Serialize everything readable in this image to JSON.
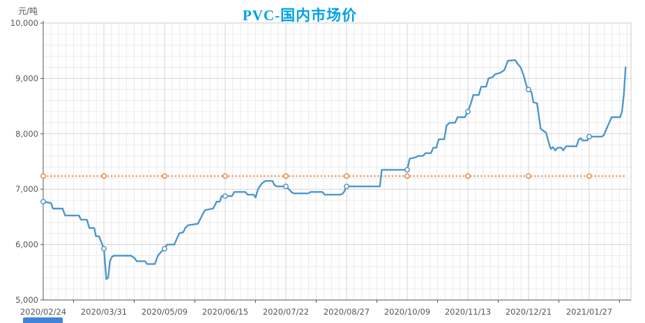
{
  "page": {
    "unit_label": "元/吨",
    "title": "PVC-国内市场价"
  },
  "chart_data": {
    "type": "line",
    "title": "PVC-国内市场价",
    "ylabel": "元/吨",
    "ylim": [
      5000,
      10000
    ],
    "y_tick_step": 1000,
    "y_minor_step": 200,
    "y_tick_labels": [
      "5,000",
      "6,000",
      "7,000",
      "8,000",
      "9,000",
      "10,000"
    ],
    "x_tick_labels": [
      "2020/02/24",
      "2020/03/31",
      "2020/05/09",
      "2020/06/15",
      "2020/07/22",
      "2020/08/27",
      "2020/10/09",
      "2020/11/13",
      "2020/12/21",
      "2021/01/27"
    ],
    "x_minor_per_interval": 8,
    "x_range_units": [
      0,
      9.69
    ],
    "grid": true,
    "legend": "none",
    "series": [
      {
        "id": "market-price",
        "color": "#4e97cb",
        "line_style": "solid",
        "marker": "hollow-circle-at-label-positions",
        "points": [
          [
            0.0,
            6775
          ],
          [
            0.13,
            6750
          ],
          [
            0.16,
            6650
          ],
          [
            0.32,
            6650
          ],
          [
            0.36,
            6525
          ],
          [
            0.59,
            6525
          ],
          [
            0.62,
            6450
          ],
          [
            0.72,
            6450
          ],
          [
            0.76,
            6300
          ],
          [
            0.84,
            6300
          ],
          [
            0.87,
            6150
          ],
          [
            0.92,
            6150
          ],
          [
            1.0,
            5925
          ],
          [
            1.04,
            5375
          ],
          [
            1.07,
            5400
          ],
          [
            1.1,
            5700
          ],
          [
            1.13,
            5775
          ],
          [
            1.16,
            5800
          ],
          [
            1.45,
            5800
          ],
          [
            1.51,
            5750
          ],
          [
            1.54,
            5700
          ],
          [
            1.68,
            5700
          ],
          [
            1.71,
            5650
          ],
          [
            1.84,
            5650
          ],
          [
            1.89,
            5800
          ],
          [
            1.95,
            5875
          ],
          [
            2.0,
            5925
          ],
          [
            2.04,
            6000
          ],
          [
            2.16,
            6000
          ],
          [
            2.2,
            6100
          ],
          [
            2.24,
            6200
          ],
          [
            2.31,
            6225
          ],
          [
            2.34,
            6300
          ],
          [
            2.39,
            6350
          ],
          [
            2.55,
            6375
          ],
          [
            2.63,
            6550
          ],
          [
            2.67,
            6625
          ],
          [
            2.8,
            6650
          ],
          [
            2.86,
            6775
          ],
          [
            2.91,
            6775
          ],
          [
            2.94,
            6875
          ],
          [
            3.11,
            6875
          ],
          [
            3.15,
            6950
          ],
          [
            3.33,
            6950
          ],
          [
            3.37,
            6900
          ],
          [
            3.47,
            6900
          ],
          [
            3.5,
            6850
          ],
          [
            3.54,
            7000
          ],
          [
            3.6,
            7100
          ],
          [
            3.66,
            7150
          ],
          [
            3.78,
            7150
          ],
          [
            3.81,
            7075
          ],
          [
            3.85,
            7050
          ],
          [
            4.0,
            7050
          ],
          [
            4.05,
            7000
          ],
          [
            4.09,
            6950
          ],
          [
            4.13,
            6925
          ],
          [
            4.37,
            6925
          ],
          [
            4.41,
            6950
          ],
          [
            4.6,
            6950
          ],
          [
            4.64,
            6900
          ],
          [
            4.9,
            6900
          ],
          [
            4.94,
            6925
          ],
          [
            4.97,
            6975
          ],
          [
            5.0,
            7050
          ],
          [
            5.55,
            7050
          ],
          [
            5.58,
            7350
          ],
          [
            6.0,
            7350
          ],
          [
            6.04,
            7550
          ],
          [
            6.14,
            7575
          ],
          [
            6.18,
            7600
          ],
          [
            6.26,
            7600
          ],
          [
            6.3,
            7650
          ],
          [
            6.39,
            7650
          ],
          [
            6.43,
            7750
          ],
          [
            6.48,
            7750
          ],
          [
            6.52,
            7900
          ],
          [
            6.61,
            7900
          ],
          [
            6.65,
            8150
          ],
          [
            6.7,
            8200
          ],
          [
            6.79,
            8200
          ],
          [
            6.83,
            8300
          ],
          [
            6.95,
            8300
          ],
          [
            7.0,
            8400
          ],
          [
            7.05,
            8550
          ],
          [
            7.09,
            8700
          ],
          [
            7.18,
            8700
          ],
          [
            7.22,
            8850
          ],
          [
            7.3,
            8850
          ],
          [
            7.34,
            9000
          ],
          [
            7.41,
            9025
          ],
          [
            7.45,
            9075
          ],
          [
            7.53,
            9100
          ],
          [
            7.6,
            9150
          ],
          [
            7.66,
            9320
          ],
          [
            7.78,
            9330
          ],
          [
            7.83,
            9250
          ],
          [
            7.87,
            9200
          ],
          [
            7.92,
            9050
          ],
          [
            7.97,
            8850
          ],
          [
            8.0,
            8800
          ],
          [
            8.05,
            8750
          ],
          [
            8.08,
            8570
          ],
          [
            8.14,
            8550
          ],
          [
            8.2,
            8090
          ],
          [
            8.25,
            8050
          ],
          [
            8.29,
            8020
          ],
          [
            8.35,
            7775
          ],
          [
            8.37,
            7725
          ],
          [
            8.4,
            7760
          ],
          [
            8.44,
            7700
          ],
          [
            8.48,
            7750
          ],
          [
            8.54,
            7750
          ],
          [
            8.57,
            7700
          ],
          [
            8.62,
            7775
          ],
          [
            8.79,
            7775
          ],
          [
            8.83,
            7900
          ],
          [
            8.86,
            7920
          ],
          [
            8.89,
            7880
          ],
          [
            8.97,
            7880
          ],
          [
            9.0,
            7950
          ],
          [
            9.21,
            7950
          ],
          [
            9.24,
            7975
          ],
          [
            9.29,
            8100
          ],
          [
            9.35,
            8250
          ],
          [
            9.37,
            8300
          ],
          [
            9.51,
            8300
          ],
          [
            9.54,
            8400
          ],
          [
            9.57,
            8700
          ],
          [
            9.6,
            9200
          ]
        ]
      },
      {
        "id": "reference-average",
        "color": "#e8823c",
        "line_style": "dotted",
        "marker": "hollow-circle-at-label-positions",
        "constant_value": 7237,
        "x_extent": [
          0,
          9.6
        ]
      }
    ],
    "colors": {
      "title": "#00a0e8",
      "axis_line": "#555555",
      "tick_label": "#555555",
      "grid_major": "#d4d4d4",
      "grid_minor": "#ebebeb",
      "plot_border": "#cccccc"
    }
  }
}
